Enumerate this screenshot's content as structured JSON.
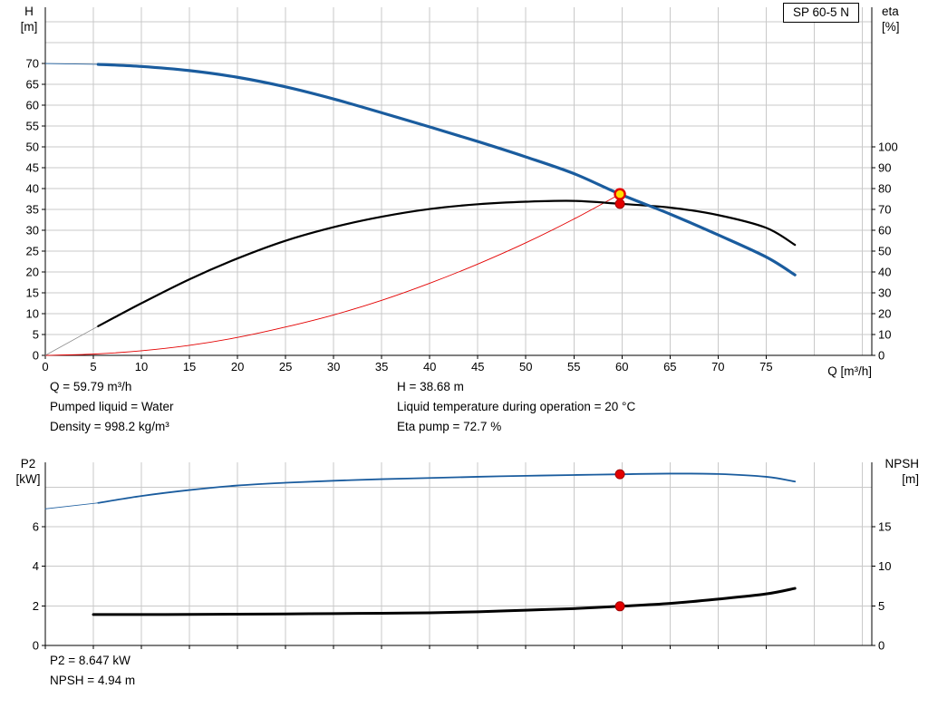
{
  "pump_label": "SP 60-5 N",
  "colors": {
    "curve_blue": "#1a5c9e",
    "curve_black": "#000000",
    "curve_red": "#e30000",
    "lead_gray": "#8a8a8a",
    "grid": "#c9c9c9",
    "axis": "#000000",
    "marker_yellow": "#ffdd00",
    "marker_red": "#e30000",
    "marker_red_edge": "#a00000"
  },
  "axis_titles": {
    "top_left_line1": "H",
    "top_left_line2": "[m]",
    "top_right_line1": "eta",
    "top_right_line2": "[%]",
    "x_label": "Q [m³/h]",
    "bottom_left_line1": "P2",
    "bottom_left_line2": "[kW]",
    "bottom_right_line1": "NPSH",
    "bottom_right_line2": "[m]"
  },
  "readouts": {
    "q": "Q = 59.79 m³/h",
    "pumped_liquid": "Pumped liquid = Water",
    "density": "Density = 998.2 kg/m³",
    "h": "H = 38.68 m",
    "liquid_temp": "Liquid temperature during operation = 20 °C",
    "eta_pump": "Eta pump = 72.7 %",
    "p2": "P2 = 8.647 kW",
    "npsh": "NPSH = 4.94 m"
  },
  "duty_point": {
    "q_m3h": 59.79,
    "h_m": 38.68,
    "eta_pct": 72.7,
    "p2_kw": 8.647,
    "npsh_m": 4.94
  },
  "chart_data": [
    {
      "id": "qh-eta-chart",
      "type": "line",
      "x_axis": {
        "min": 0,
        "max": 86,
        "ticks": [
          0,
          5,
          10,
          15,
          20,
          25,
          30,
          35,
          40,
          45,
          50,
          55,
          60,
          65,
          70,
          75
        ],
        "grid": [
          5,
          10,
          15,
          20,
          25,
          30,
          35,
          40,
          45,
          50,
          55,
          60,
          65,
          70,
          75,
          80,
          85
        ],
        "show_labels": true
      },
      "y_left": {
        "min": 0,
        "max": 83.5,
        "ticks": [
          0,
          5,
          10,
          15,
          20,
          25,
          30,
          35,
          40,
          45,
          50,
          55,
          60,
          65,
          70
        ],
        "grid": [
          5,
          10,
          15,
          20,
          25,
          30,
          35,
          40,
          45,
          50,
          55,
          60,
          65,
          70,
          75,
          80
        ]
      },
      "y_right": {
        "min": 0,
        "max": 167,
        "ticks": [
          0,
          10,
          20,
          30,
          40,
          50,
          60,
          70,
          80,
          90,
          100
        ]
      },
      "series": [
        {
          "name": "system-curve",
          "axis": "left",
          "color_key": "curve_red",
          "width": 0.9,
          "points": [
            [
              0,
              0
            ],
            [
              5,
              0.3
            ],
            [
              10,
              1.1
            ],
            [
              15,
              2.4
            ],
            [
              20,
              4.3
            ],
            [
              25,
              6.8
            ],
            [
              30,
              9.7
            ],
            [
              35,
              13.2
            ],
            [
              40,
              17.3
            ],
            [
              45,
              21.9
            ],
            [
              50,
              27.0
            ],
            [
              55,
              32.7
            ],
            [
              59.79,
              38.68
            ]
          ]
        },
        {
          "name": "eta-lead",
          "axis": "right",
          "color_key": "lead_gray",
          "width": 0.8,
          "points": [
            [
              0,
              0
            ],
            [
              5.5,
              14
            ]
          ]
        },
        {
          "name": "eta-curve",
          "axis": "right",
          "color_key": "curve_black",
          "width": 2.2,
          "points": [
            [
              5.5,
              14
            ],
            [
              10,
              25
            ],
            [
              15,
              36.5
            ],
            [
              20,
              46.5
            ],
            [
              25,
              55
            ],
            [
              30,
              61.5
            ],
            [
              35,
              66.5
            ],
            [
              40,
              70.2
            ],
            [
              45,
              72.5
            ],
            [
              50,
              73.7
            ],
            [
              55,
              74.1
            ],
            [
              59.79,
              72.7
            ],
            [
              65,
              70.9
            ],
            [
              70,
              67.3
            ],
            [
              75,
              61.2
            ],
            [
              78,
              53
            ]
          ]
        },
        {
          "name": "head-lead",
          "axis": "left",
          "color_key": "curve_blue",
          "width": 0.8,
          "points": [
            [
              0,
              70
            ],
            [
              5.5,
              69.8
            ]
          ]
        },
        {
          "name": "head-curve",
          "axis": "left",
          "color_key": "curve_blue",
          "width": 3.2,
          "points": [
            [
              5.5,
              69.8
            ],
            [
              10,
              69.3
            ],
            [
              15,
              68.3
            ],
            [
              20,
              66.7
            ],
            [
              25,
              64.4
            ],
            [
              30,
              61.5
            ],
            [
              35,
              58.2
            ],
            [
              40,
              54.8
            ],
            [
              45,
              51.3
            ],
            [
              50,
              47.6
            ],
            [
              55,
              43.6
            ],
            [
              59.79,
              38.68
            ],
            [
              65,
              33.9
            ],
            [
              70,
              28.9
            ],
            [
              75,
              23.6
            ],
            [
              78,
              19.3
            ]
          ]
        }
      ],
      "markers": [
        {
          "x": 59.79,
          "value": 72.7,
          "axis": "right",
          "style": "dot"
        },
        {
          "x": 59.79,
          "value": 38.68,
          "axis": "left",
          "style": "duty"
        }
      ]
    },
    {
      "id": "p2-npsh-chart",
      "type": "line",
      "x_axis": {
        "min": 0,
        "max": 86,
        "ticks": [
          0,
          5,
          10,
          15,
          20,
          25,
          30,
          35,
          40,
          45,
          50,
          55,
          60,
          65,
          70,
          75
        ],
        "grid": [
          5,
          10,
          15,
          20,
          25,
          30,
          35,
          40,
          45,
          50,
          55,
          60,
          65,
          70,
          75,
          80,
          85
        ],
        "show_labels": false
      },
      "y_left": {
        "min": 0,
        "max": 9.25,
        "ticks": [
          0,
          2,
          4,
          6
        ],
        "grid": [
          2,
          4,
          6,
          8
        ]
      },
      "y_right": {
        "min": 0,
        "max": 23.1,
        "ticks": [
          0,
          5,
          10,
          15
        ]
      },
      "series": [
        {
          "name": "p2-lead",
          "axis": "left",
          "color_key": "curve_blue",
          "width": 0.8,
          "points": [
            [
              0,
              6.9
            ],
            [
              5.5,
              7.2
            ]
          ]
        },
        {
          "name": "p2-curve",
          "axis": "left",
          "color_key": "curve_blue",
          "width": 1.8,
          "points": [
            [
              5.5,
              7.2
            ],
            [
              10,
              7.55
            ],
            [
              15,
              7.85
            ],
            [
              20,
              8.08
            ],
            [
              25,
              8.22
            ],
            [
              30,
              8.32
            ],
            [
              35,
              8.4
            ],
            [
              40,
              8.46
            ],
            [
              45,
              8.52
            ],
            [
              50,
              8.57
            ],
            [
              55,
              8.61
            ],
            [
              59.79,
              8.647
            ],
            [
              65,
              8.68
            ],
            [
              70,
              8.66
            ],
            [
              75,
              8.52
            ],
            [
              78,
              8.28
            ]
          ]
        },
        {
          "name": "npsh-curve",
          "axis": "right",
          "color_key": "curve_black",
          "width": 3,
          "points": [
            [
              5,
              3.9
            ],
            [
              10,
              3.9
            ],
            [
              15,
              3.92
            ],
            [
              20,
              3.95
            ],
            [
              25,
              3.98
            ],
            [
              30,
              4.02
            ],
            [
              35,
              4.06
            ],
            [
              40,
              4.12
            ],
            [
              45,
              4.25
            ],
            [
              50,
              4.45
            ],
            [
              55,
              4.65
            ],
            [
              59.79,
              4.94
            ],
            [
              65,
              5.3
            ],
            [
              70,
              5.85
            ],
            [
              75,
              6.5
            ],
            [
              78,
              7.2
            ]
          ]
        }
      ],
      "markers": [
        {
          "x": 59.79,
          "value": 8.647,
          "axis": "left",
          "style": "dot"
        },
        {
          "x": 59.79,
          "value": 4.94,
          "axis": "right",
          "style": "dot"
        }
      ]
    }
  ]
}
